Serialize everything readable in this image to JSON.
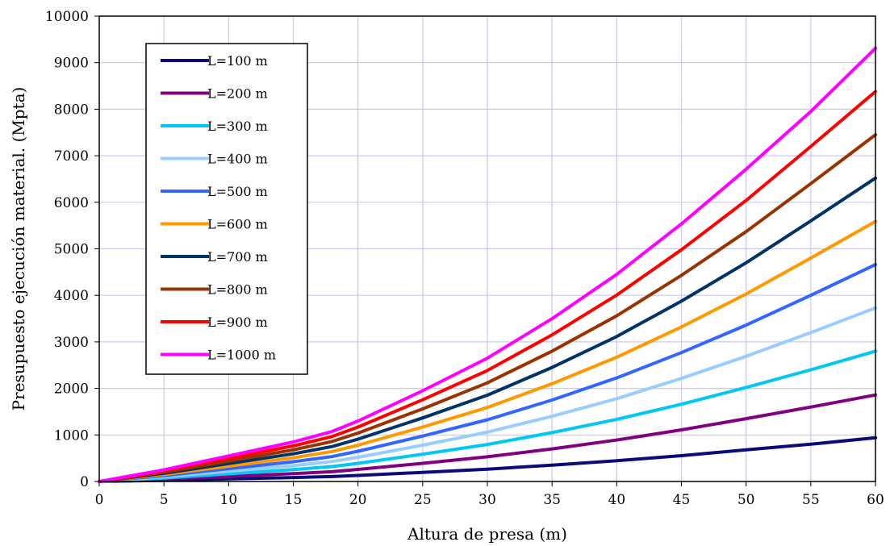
{
  "chart_data": {
    "type": "line",
    "xlabel": "Altura de presa (m)",
    "ylabel": "Presupuesto ejecución material. (Mpta)",
    "xlim": [
      0,
      60
    ],
    "ylim": [
      0,
      10000
    ],
    "xticks": [
      0,
      5,
      10,
      15,
      20,
      25,
      30,
      35,
      40,
      45,
      50,
      55,
      60
    ],
    "yticks": [
      0,
      1000,
      2000,
      3000,
      4000,
      5000,
      6000,
      7000,
      8000,
      9000,
      10000
    ],
    "grid": true,
    "legend_position": "top-left",
    "x": [
      0,
      5,
      10,
      15,
      18,
      20,
      25,
      30,
      35,
      40,
      45,
      50,
      55,
      60
    ],
    "series": [
      {
        "name": "L=100 m",
        "color": "#0a0a7a",
        "values": [
          0,
          25,
          55,
          85,
          105,
          130,
          195,
          265,
          350,
          445,
          555,
          680,
          800,
          940
        ]
      },
      {
        "name": "L=200 m",
        "color": "#800080",
        "values": [
          0,
          50,
          110,
          170,
          210,
          260,
          390,
          530,
          700,
          890,
          1110,
          1350,
          1600,
          1860
        ]
      },
      {
        "name": "L=300 m",
        "color": "#00c8f0",
        "values": [
          0,
          75,
          165,
          255,
          320,
          390,
          585,
          795,
          1050,
          1335,
          1660,
          2020,
          2400,
          2800
        ]
      },
      {
        "name": "L=400 m",
        "color": "#99ccff",
        "values": [
          0,
          100,
          220,
          340,
          430,
          520,
          780,
          1060,
          1400,
          1780,
          2215,
          2690,
          3200,
          3730
        ]
      },
      {
        "name": "L=500 m",
        "color": "#3366ff",
        "values": [
          0,
          125,
          275,
          425,
          535,
          650,
          975,
          1325,
          1750,
          2225,
          2770,
          3360,
          4000,
          4660
        ]
      },
      {
        "name": "L=600 m",
        "color": "#ff9900",
        "values": [
          0,
          150,
          330,
          510,
          645,
          780,
          1170,
          1590,
          2100,
          2670,
          3320,
          4030,
          4800,
          5590
        ]
      },
      {
        "name": "L=700 m",
        "color": "#003366",
        "values": [
          0,
          175,
          385,
          595,
          750,
          910,
          1365,
          1855,
          2450,
          3115,
          3875,
          4700,
          5600,
          6520
        ]
      },
      {
        "name": "L=800 m",
        "color": "#993300",
        "values": [
          0,
          200,
          440,
          680,
          860,
          1040,
          1560,
          2120,
          2800,
          3560,
          4430,
          5370,
          6400,
          7450
        ]
      },
      {
        "name": "L=900 m",
        "color": "#ff0000",
        "values": [
          0,
          225,
          495,
          765,
          965,
          1170,
          1755,
          2385,
          3150,
          4005,
          4980,
          6040,
          7200,
          8380
        ]
      },
      {
        "name": "L=1000 m",
        "color": "#ff00ff",
        "values": [
          0,
          250,
          550,
          850,
          1075,
          1300,
          1950,
          2650,
          3500,
          4450,
          5535,
          6710,
          7950,
          9310
        ]
      }
    ]
  }
}
